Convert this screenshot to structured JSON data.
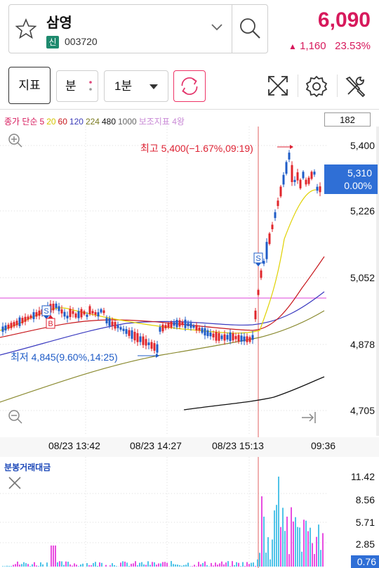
{
  "header": {
    "stock_name": "삼영",
    "badge": "신",
    "stock_code": "003720",
    "price": "6,090",
    "change_amount": "1,160",
    "change_percent": "23.53%",
    "up_arrow": "▲"
  },
  "toolbar": {
    "indicator_label": "지표",
    "period_label": "분",
    "interval_label": "1분"
  },
  "legend": {
    "items": [
      {
        "text": "종가 단순",
        "color": "#d7195c"
      },
      {
        "text": "5",
        "color": "#d7195c"
      },
      {
        "text": "20",
        "color": "#d4c400"
      },
      {
        "text": "60",
        "color": "#c7171c"
      },
      {
        "text": "120",
        "color": "#3a3ab8"
      },
      {
        "text": "224",
        "color": "#7a7a20"
      },
      {
        "text": "480",
        "color": "#111111"
      },
      {
        "text": "1000",
        "color": "#666666"
      },
      {
        "text": "보조지표 4왕",
        "color": "#c98ad6"
      }
    ],
    "count": "182"
  },
  "chart_data": {
    "type": "candlestick",
    "y_ticks": [
      "5,400",
      "5,226",
      "5,052",
      "4,878",
      "4,705"
    ],
    "x_ticks": [
      "08/23 13:42",
      "08/23 14:27",
      "08/23 15:13",
      "09:36"
    ],
    "current_price": "5,310",
    "current_change": "0.00%",
    "high_annotation": "최고 5,400(−1.67%,09:19)",
    "low_annotation": "최저 4,845(9.60%,14:25)",
    "markers": [
      "S",
      "B",
      "S"
    ],
    "volume_title": "분봉거래대금",
    "volume_ticks": [
      "11.42",
      "8.56",
      "5.71",
      "2.85"
    ],
    "volume_current": "0.76"
  }
}
